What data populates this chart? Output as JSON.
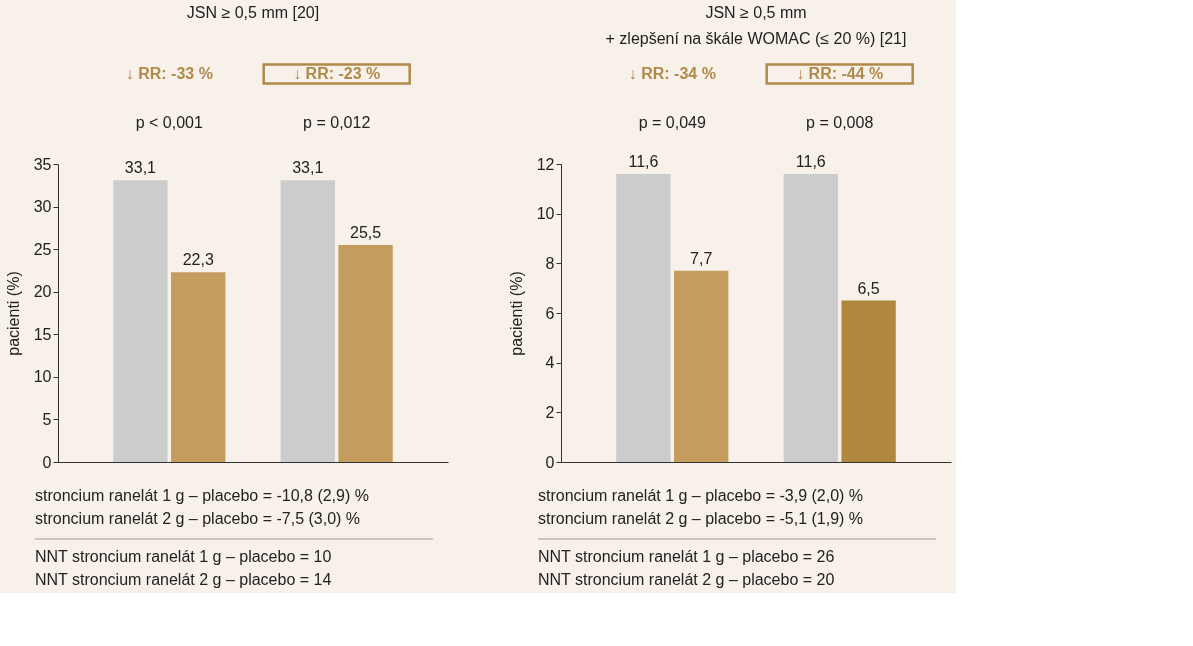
{
  "chart_data": [
    {
      "type": "bar",
      "title": "JSN ≥ 0,5 mm [20]",
      "ylabel": "pacienti (%)",
      "categories": [
        null,
        null
      ],
      "series": [
        {
          "color": "#cccccc",
          "values": [
            33.1,
            33.1
          ],
          "value_labels": [
            "33,1",
            "33,1"
          ]
        },
        {
          "color": "#c49d5e",
          "values": [
            22.3,
            25.5
          ],
          "value_labels": [
            "22,3",
            "25,5"
          ]
        }
      ],
      "ylim": [
        0,
        35
      ],
      "yticks": [
        0,
        5,
        10,
        15,
        20,
        25,
        30,
        35
      ],
      "grid": false,
      "legend": false,
      "annotations": [
        "↓ RR: -33 %",
        "↓ RR: -23 %",
        "p < 0,001",
        "p = 0,012",
        "stroncium ranelát 1 g – placebo = -10,8 (2,9) %",
        "stroncium ranelát 2 g – placebo = -7,5 (3,0) %",
        "NNT stroncium ranelát 1 g – placebo = 10",
        "NNT stroncium ranelát 2 g – placebo = 14"
      ]
    },
    {
      "type": "bar",
      "title": "JSN ≥ 0,5 mm\n+ zlepšení na škále WOMAC (≤ 20 %) [21]",
      "ylabel": "pacienti (%)",
      "categories": [
        null,
        null
      ],
      "series": [
        {
          "color": "#cccccc",
          "values": [
            11.6,
            11.6
          ],
          "value_labels": [
            "11,6",
            "11,6"
          ]
        },
        {
          "colors": [
            "#c49d5e",
            "#b0873e"
          ],
          "values": [
            7.7,
            6.5
          ],
          "value_labels": [
            "7,7",
            "6,5"
          ]
        }
      ],
      "ylim": [
        0,
        12
      ],
      "yticks": [
        0,
        2,
        4,
        6,
        8,
        10,
        12
      ],
      "grid": false,
      "legend": false,
      "annotations": [
        "↓ RR: -34 %",
        "↓ RR: -44 %",
        "p = 0,049",
        "p = 0,008",
        "stroncium ranelát 1 g – placebo = -3,9 (2,0) %",
        "stroncium ranelát 2 g – placebo = -5,1 (1,9) %",
        "NNT stroncium ranelát 1 g – placebo = 26",
        "NNT stroncium ranelát 2 g – placebo = 20"
      ]
    }
  ]
}
